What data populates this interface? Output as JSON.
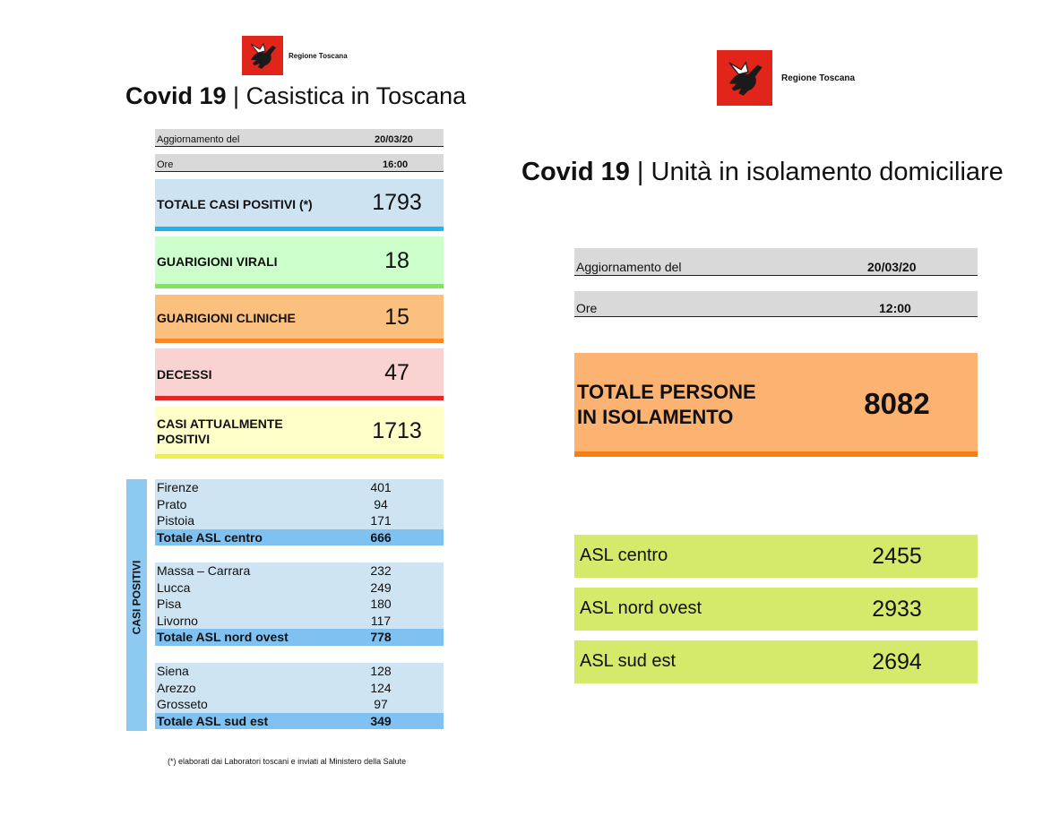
{
  "brand": {
    "name": "Regione Toscana",
    "logo_icon": "winged-horse-logo-icon",
    "logo_color": "#e1251b"
  },
  "left": {
    "title_bold": "Covid 19",
    "title_rest": " | Casistica in Toscana",
    "update_label": "Aggiornamento del",
    "update_value": "20/03/20",
    "time_label": "Ore",
    "time_value": "16:00",
    "stats": {
      "positive": {
        "label": "TOTALE CASI POSITIVI (*)",
        "value": "1793",
        "color": "#cde3f1",
        "bar": "#1fb4ea"
      },
      "viral": {
        "label": "GUARIGIONI VIRALI",
        "value": "18",
        "color": "#ccffcc",
        "bar": "#7fe65a"
      },
      "clinical": {
        "label": "GUARIGIONI CLINICHE",
        "value": "15",
        "color": "#fcc07e",
        "bar": "#f58a2b"
      },
      "deaths": {
        "label": "DECESSI",
        "value": "47",
        "color": "#f9d3d1",
        "bar": "#e2262a"
      },
      "current": {
        "label_line1": "CASI ATTUALMENTE",
        "label_line2": "POSITIVI",
        "value": "1713",
        "color": "#ffffc9",
        "bar": "#f2ee4a"
      }
    },
    "vertical_label": "CASI POSITIVI",
    "groups": [
      {
        "rows": [
          {
            "name": "Firenze",
            "value": "401"
          },
          {
            "name": "Prato",
            "value": "94"
          },
          {
            "name": "Pistoia",
            "value": "171"
          }
        ],
        "total": {
          "name": "Totale ASL centro",
          "value": "666"
        }
      },
      {
        "rows": [
          {
            "name": "Massa – Carrara",
            "value": "232"
          },
          {
            "name": "Lucca",
            "value": "249"
          },
          {
            "name": "Pisa",
            "value": "180"
          },
          {
            "name": "Livorno",
            "value": "117"
          }
        ],
        "total": {
          "name": "Totale ASL nord ovest",
          "value": "778"
        }
      },
      {
        "rows": [
          {
            "name": "Siena",
            "value": "128"
          },
          {
            "name": "Arezzo",
            "value": "124"
          },
          {
            "name": "Grosseto",
            "value": "97"
          }
        ],
        "total": {
          "name": "Totale ASL sud est",
          "value": "349"
        }
      }
    ],
    "footnote": "(*) elaborati dai Laboratori toscani e inviati al Ministero della Salute"
  },
  "right": {
    "title_bold": "Covid 19",
    "title_rest": " | Unità in isolamento domiciliare",
    "update_label": "Aggiornamento del",
    "update_value": "20/03/20",
    "time_label": "Ore",
    "time_value": "12:00",
    "total_label_line1": "TOTALE PERSONE",
    "total_label_line2": "IN ISOLAMENTO",
    "total_value": "8082",
    "asl": [
      {
        "label": "ASL centro",
        "value": "2455"
      },
      {
        "label": "ASL nord ovest",
        "value": "2933"
      },
      {
        "label": "ASL sud est",
        "value": "2694"
      }
    ]
  }
}
